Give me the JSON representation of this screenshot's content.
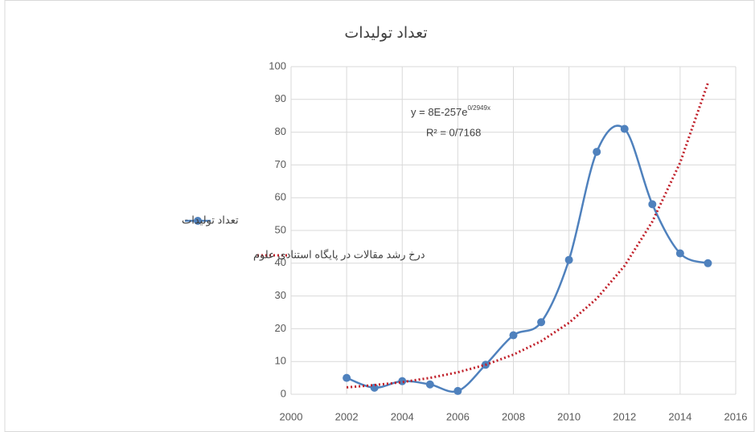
{
  "chart_data": {
    "type": "line",
    "title": "تعداد تولیدات",
    "annotations": [
      {
        "text": "y = 8E-257e",
        "superscript": "0/2949x"
      },
      {
        "text": "R² = 0/7168"
      }
    ],
    "series": [
      {
        "name": "تعداد تولیدات",
        "color": "#4f81bd",
        "smooth": true,
        "markers": true,
        "x": [
          2002,
          2003,
          2004,
          2005,
          2006,
          2007,
          2008,
          2009,
          2010,
          2011,
          2012,
          2013,
          2014,
          2015
        ],
        "values": [
          5,
          2,
          4,
          3,
          1,
          9,
          18,
          22,
          41,
          74,
          81,
          58,
          43,
          40
        ]
      },
      {
        "name": "درخ رشد مقالات در پایگاه استنادی علوم",
        "color": "#c0202a",
        "dash": "dotted",
        "x": [
          2002,
          2003,
          2004,
          2005,
          2006,
          2007,
          2008,
          2009,
          2010,
          2011,
          2012,
          2013,
          2014,
          2015
        ],
        "values": [
          2.1,
          2.8,
          3.7,
          5.0,
          6.7,
          9.0,
          12.1,
          16.2,
          21.8,
          29.2,
          39.2,
          52.7,
          70.7,
          95
        ]
      }
    ],
    "xlim": [
      2000,
      2016
    ],
    "xticks": [
      2000,
      2002,
      2004,
      2006,
      2008,
      2010,
      2012,
      2014,
      2016
    ],
    "ylim": [
      0,
      100
    ],
    "yticks": [
      0,
      10,
      20,
      30,
      40,
      50,
      60,
      70,
      80,
      90,
      100
    ],
    "grid": true,
    "legend": "left"
  }
}
